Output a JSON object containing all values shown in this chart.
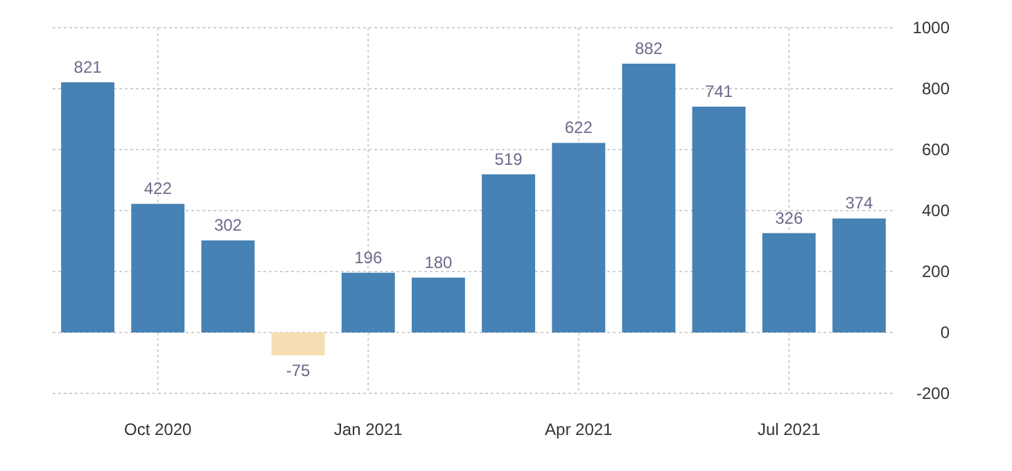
{
  "chart_data": {
    "type": "bar",
    "categories": [
      null,
      "Oct 2020",
      null,
      null,
      "Jan 2021",
      null,
      null,
      "Apr 2021",
      null,
      null,
      "Jul 2021",
      null
    ],
    "values": [
      821,
      422,
      302,
      -75,
      196,
      180,
      519,
      622,
      882,
      741,
      326,
      374
    ],
    "colors": [
      "#4682b4",
      "#4682b4",
      "#4682b4",
      "#f5deb3",
      "#4682b4",
      "#4682b4",
      "#4682b4",
      "#4682b4",
      "#4682b4",
      "#4682b4",
      "#4682b4",
      "#4682b4"
    ],
    "ylim": [
      -200,
      1000
    ],
    "yticks": [
      -200,
      0,
      200,
      400,
      600,
      800,
      1000
    ],
    "grid": true,
    "data_labels": true
  }
}
